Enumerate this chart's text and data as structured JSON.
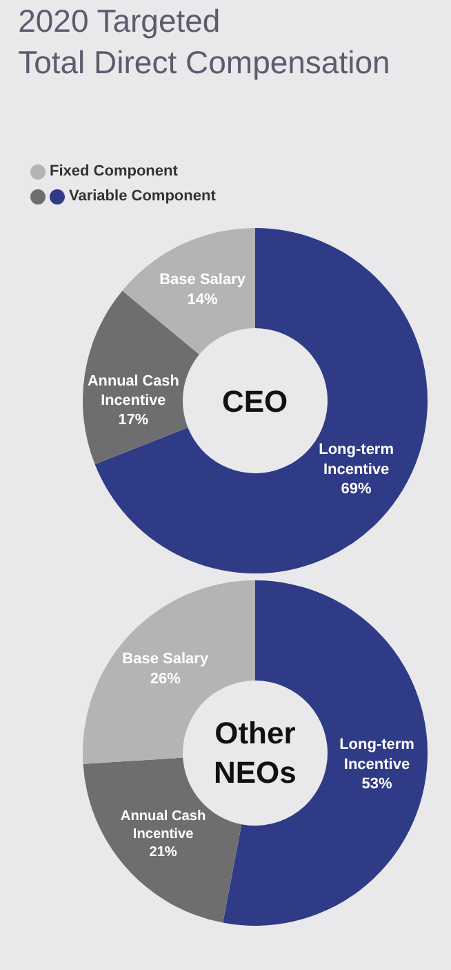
{
  "chart_data": [
    {
      "type": "donut",
      "title": "2020 Targeted Total Direct Compensation",
      "categories": [
        "Long-term Incentive",
        "Annual Cash Incentive",
        "Base Salary"
      ],
      "values": [
        69,
        17,
        14
      ],
      "colors": [
        "#2f3b86",
        "#6e6e70",
        "#b4b4b6"
      ],
      "value_labels": [
        "69%",
        "17%",
        "14%"
      ],
      "annotations": [
        "Fixed Component",
        "Variable Component",
        "CEO"
      ]
    },
    {
      "type": "donut",
      "categories": [
        "Long-term Incentive",
        "Annual Cash Incentive",
        "Base Salary"
      ],
      "values": [
        53,
        21,
        26
      ],
      "colors": [
        "#2f3b86",
        "#6e6e70",
        "#b4b4b6"
      ],
      "value_labels": [
        "53%",
        "21%",
        "26%"
      ],
      "annotations": [
        "Other NEOs"
      ]
    }
  ]
}
